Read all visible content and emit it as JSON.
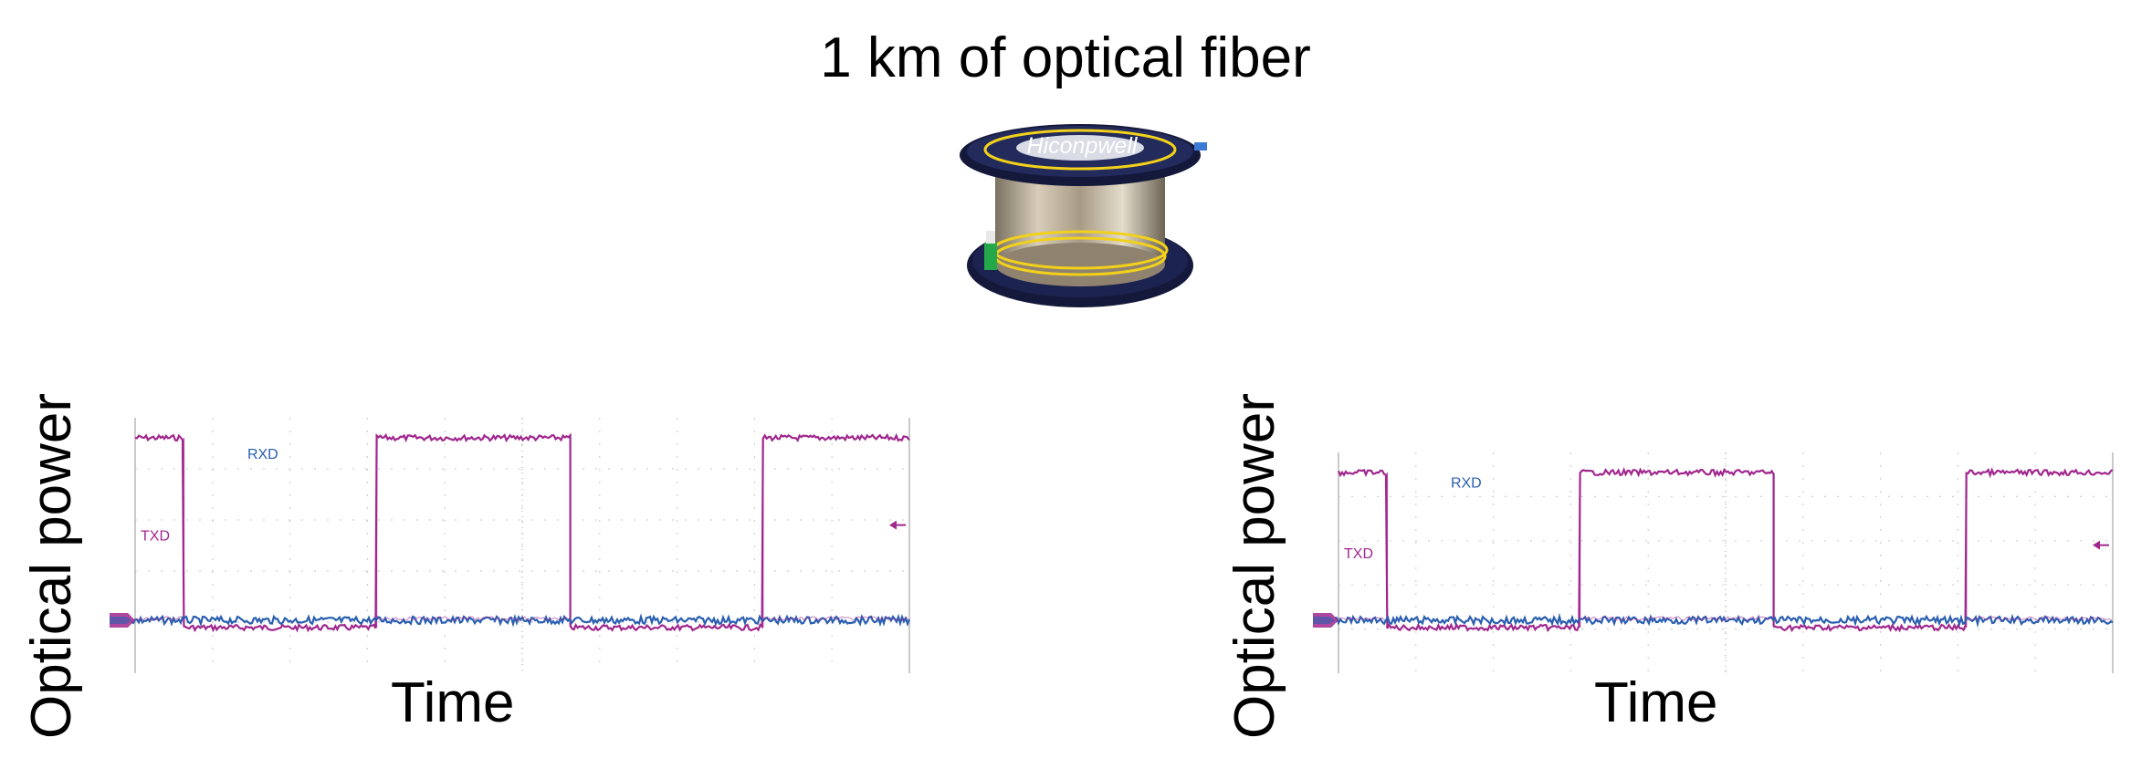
{
  "title": "1 km of optical fiber",
  "spool": {
    "brand_text": "Hiconpwell",
    "colors": {
      "flange": "#14183a",
      "fiber": "#b7aa96",
      "jacket": "#f2d11a",
      "connector": "#23a84a"
    }
  },
  "panels": [
    {
      "ylabel": "Optical power",
      "xlabel": "Time",
      "channels": [
        {
          "label": "RXD",
          "color": "#2a5fb0"
        },
        {
          "label": "TXD",
          "color": "#a0278e"
        }
      ],
      "txd_segments": [
        {
          "start": 0.0,
          "end": 0.063,
          "level": "high"
        },
        {
          "start": 0.063,
          "end": 0.312,
          "level": "low"
        },
        {
          "start": 0.312,
          "end": 0.562,
          "level": "high"
        },
        {
          "start": 0.562,
          "end": 0.811,
          "level": "low"
        },
        {
          "start": 0.811,
          "end": 1.0,
          "level": "high"
        }
      ]
    },
    {
      "ylabel": "Optical power",
      "xlabel": "Time",
      "channels": [
        {
          "label": "RXD",
          "color": "#2a5fb0"
        },
        {
          "label": "TXD",
          "color": "#a0278e"
        }
      ],
      "txd_segments": [
        {
          "start": 0.0,
          "end": 0.063,
          "level": "high"
        },
        {
          "start": 0.063,
          "end": 0.312,
          "level": "low"
        },
        {
          "start": 0.312,
          "end": 0.562,
          "level": "high"
        },
        {
          "start": 0.562,
          "end": 0.811,
          "level": "low"
        },
        {
          "start": 0.811,
          "end": 1.0,
          "level": "high"
        }
      ]
    }
  ]
}
